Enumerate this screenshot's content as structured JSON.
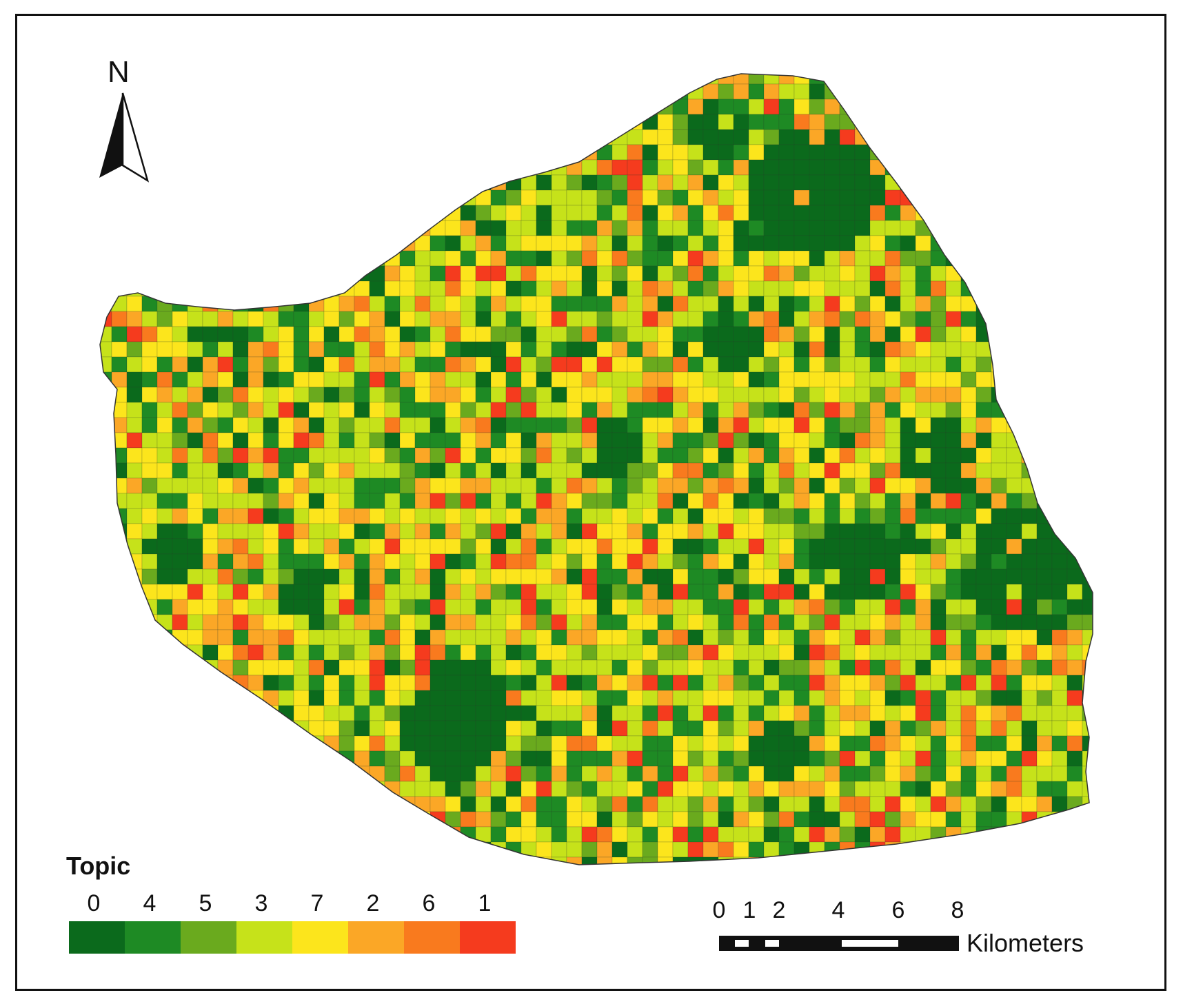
{
  "north_arrow": {
    "label": "N"
  },
  "legend": {
    "title": "Topic",
    "classes": [
      {
        "label": "0",
        "color": "#0b6a1c"
      },
      {
        "label": "4",
        "color": "#1e8a24"
      },
      {
        "label": "5",
        "color": "#6aaa1e"
      },
      {
        "label": "3",
        "color": "#c6e21a"
      },
      {
        "label": "7",
        "color": "#fce51c"
      },
      {
        "label": "2",
        "color": "#fba726"
      },
      {
        "label": "6",
        "color": "#f97a1e"
      },
      {
        "label": "1",
        "color": "#f53b1e"
      }
    ]
  },
  "scale_bar": {
    "tick_labels": [
      "0",
      "1",
      "2",
      "4",
      "6",
      "8"
    ],
    "unit": "Kilometers"
  }
}
